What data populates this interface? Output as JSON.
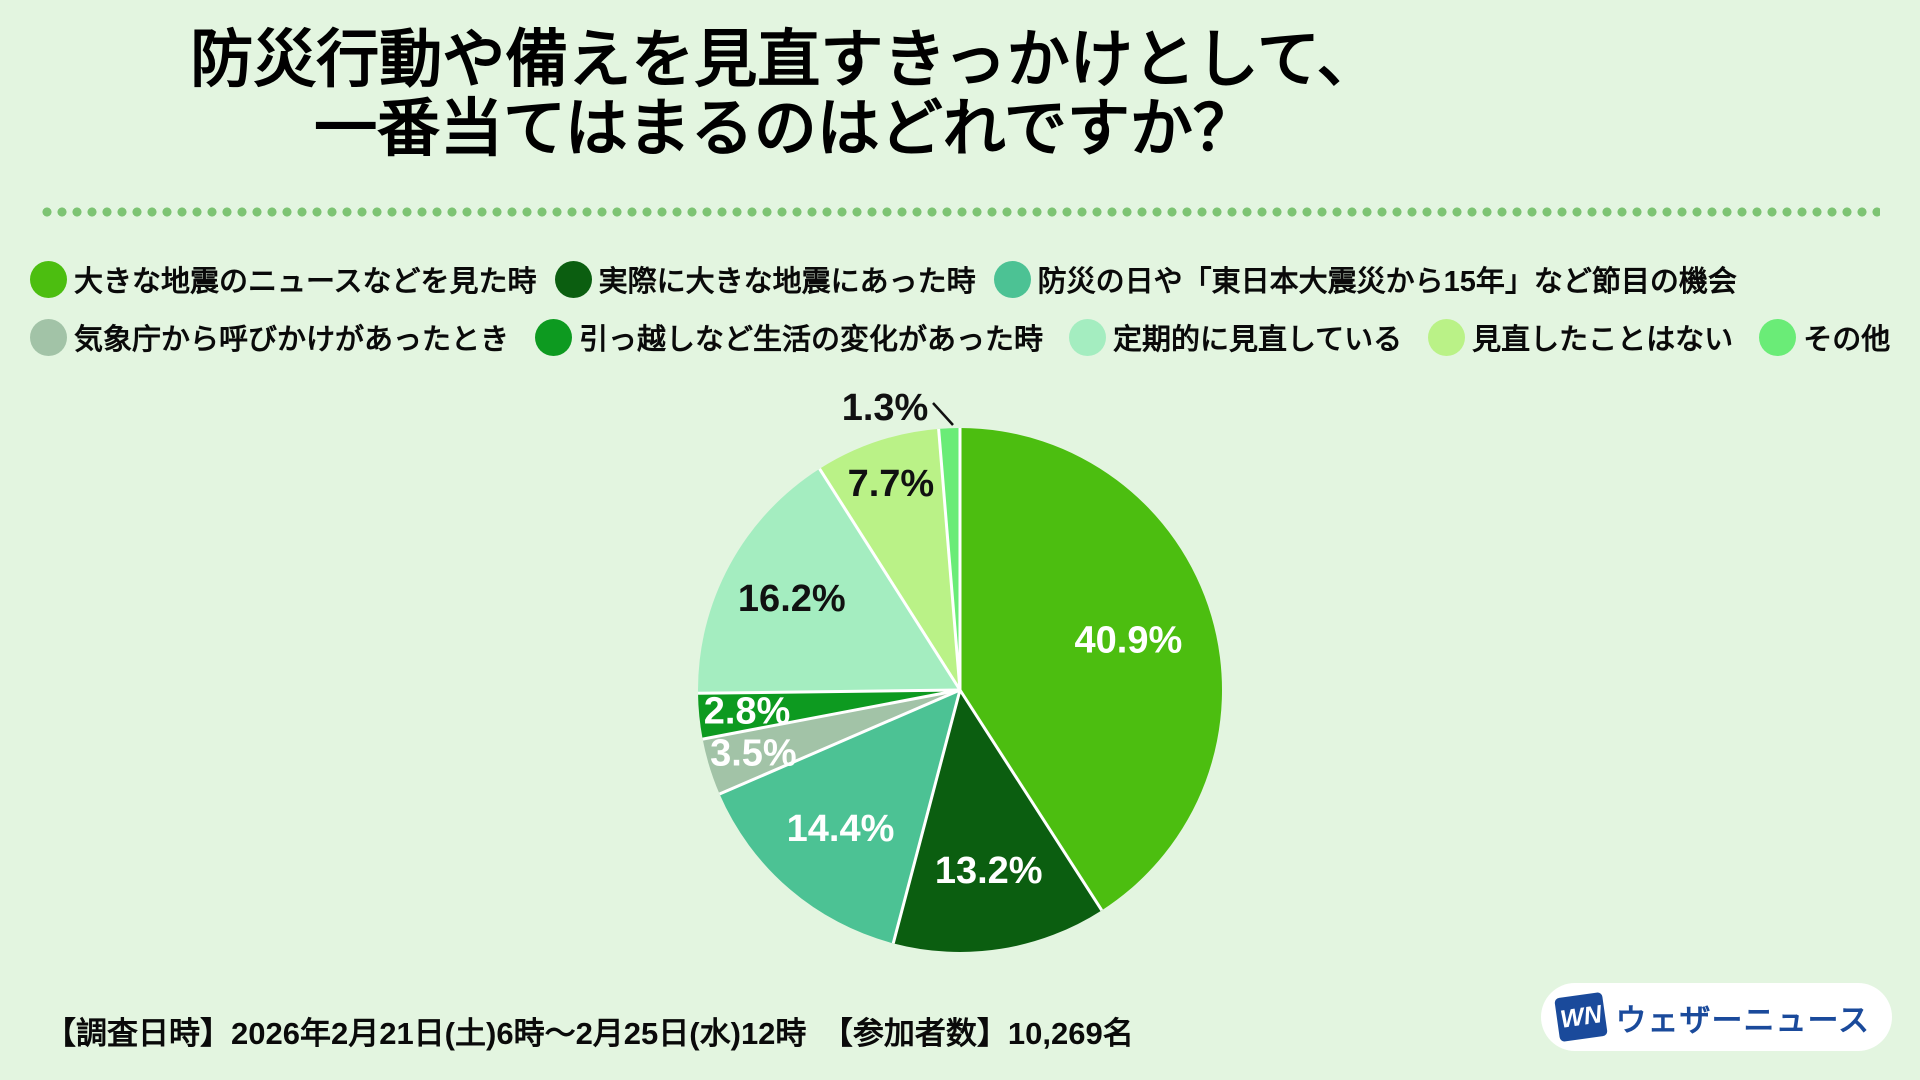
{
  "title": {
    "lines": [
      "防災行動や備えを見直すきっかけとして、",
      "一番当てはまるのはどれですか？"
    ]
  },
  "chart_data": {
    "type": "pie",
    "title": "防災行動や備えを見直すきっかけとして、一番当てはまるのはどれですか？",
    "categories": [
      "大きな地震のニュースなどを見た時",
      "実際に大きな地震にあった時",
      "防災の日や「東日本大震災から15年」など節目の機会",
      "気象庁から呼びかけがあったとき",
      "引っ越しなど生活の変化があった時",
      "定期的に見直している",
      "見直したことはない",
      "その他"
    ],
    "values": [
      40.9,
      13.2,
      14.4,
      3.5,
      2.8,
      16.2,
      7.7,
      1.3
    ],
    "unit": "%",
    "colors": [
      "#4cbe10",
      "#0b5e10",
      "#4cc294",
      "#a2c3a7",
      "#0d9a20",
      "#a4edc0",
      "#baf287",
      "#6aec77"
    ],
    "start_angle_deg": 0,
    "direction": "clockwise",
    "legend_position": "top",
    "legend_rows": [
      3,
      5
    ],
    "label_colors": [
      "#ffffff",
      "#ffffff",
      "#ffffff",
      "#ffffff",
      "#ffffff",
      "#111111",
      "#111111",
      "#111111"
    ]
  },
  "footer": {
    "survey_info": "【調査日時】2026年2月21日(土)6時〜2月25日(水)12時　【参加者数】10,269名"
  },
  "logo": {
    "mark": "WN",
    "text": "ウェザーニュース",
    "brand_color": "#1a4a9b"
  },
  "colors": {
    "background": "#e3f5e0",
    "dotted_line": "#7dc473"
  }
}
